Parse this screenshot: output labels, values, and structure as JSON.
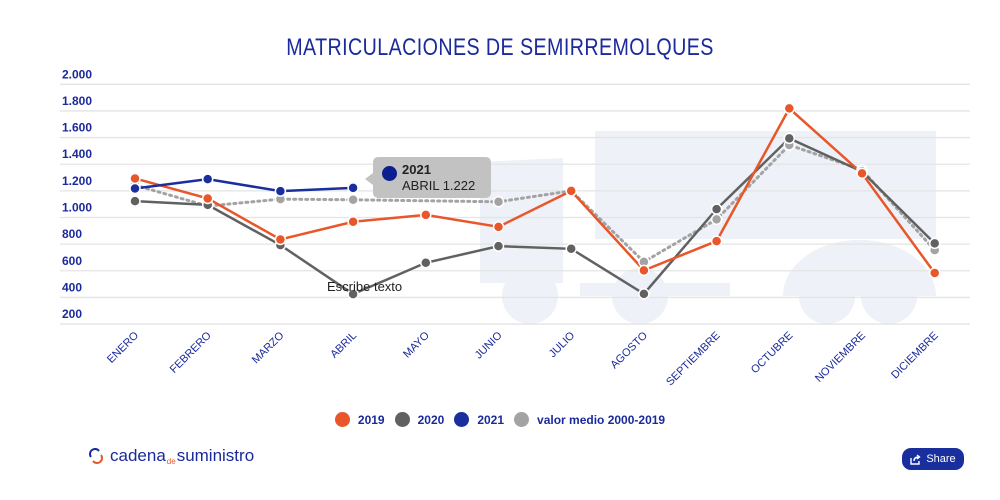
{
  "chart_data": {
    "type": "line",
    "title": "MATRICULACIONES DE SEMIRREMOLQUES",
    "categories": [
      "ENERO",
      "FEBRERO",
      "MARZO",
      "ABRIL",
      "MAYO",
      "JUNIO",
      "JULIO",
      "AGOSTO",
      "SEPTIEMBRE",
      "OCTUBRE",
      "NOVIEMBRE",
      "DICIEMBRE"
    ],
    "yticks": [
      "2.000",
      "1.800",
      "1.600",
      "1.400",
      "1.200",
      "1.000",
      "800",
      "600",
      "400",
      "200"
    ],
    "ylim": [
      200,
      2000
    ],
    "grid": true,
    "legend_placement": "bottom",
    "series": [
      {
        "name": "2019",
        "color": "#e8562a",
        "style": "solid",
        "values": [
          1293,
          1143,
          835,
          968,
          1020,
          930,
          1200,
          603,
          823,
          1819,
          1331,
          583
        ]
      },
      {
        "name": "2020",
        "color": "#616161",
        "style": "solid",
        "values": [
          1123,
          1095,
          793,
          425,
          660,
          785,
          765,
          427,
          1063,
          1594,
          1345,
          806
        ]
      },
      {
        "name": "2021",
        "color": "#1a2f9e",
        "style": "solid",
        "values": [
          1218,
          1288,
          1198,
          1222,
          null,
          null,
          null,
          null,
          null,
          null,
          null,
          null
        ]
      },
      {
        "name": "valor medio 2000-2019",
        "color": "#a3a3a3",
        "style": "dotted",
        "values": [
          1243,
          1086,
          1138,
          1133,
          null,
          1118,
          1200,
          667,
          986,
          1544,
          1358,
          755
        ]
      }
    ],
    "tooltip": {
      "series": "2021",
      "text": "ABRIL 1.222",
      "color": "#0d1f8f"
    },
    "annotation": "Escribe texto"
  },
  "footer": {
    "logo_main": "cadena",
    "logo_small": "de",
    "logo_end": "suministro",
    "share_label": "Share"
  }
}
